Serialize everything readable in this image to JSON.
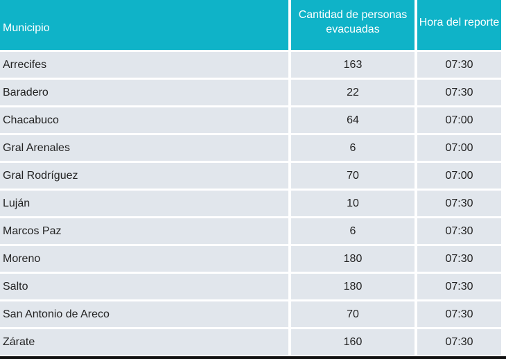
{
  "table": {
    "headers": {
      "municipio": "Municipio",
      "cantidad": "Cantidad de personas evacuadas",
      "hora": "Hora del reporte"
    },
    "rows": [
      {
        "municipio": "Arrecifes",
        "cantidad": "163",
        "hora": "07:30"
      },
      {
        "municipio": "Baradero",
        "cantidad": "22",
        "hora": "07:30"
      },
      {
        "municipio": "Chacabuco",
        "cantidad": "64",
        "hora": "07:00"
      },
      {
        "municipio": "Gral Arenales",
        "cantidad": "6",
        "hora": "07:00"
      },
      {
        "municipio": "Gral Rodríguez",
        "cantidad": "70",
        "hora": "07:00"
      },
      {
        "municipio": "Luján",
        "cantidad": "10",
        "hora": "07:30"
      },
      {
        "municipio": "Marcos Paz",
        "cantidad": "6",
        "hora": "07:30"
      },
      {
        "municipio": "Moreno",
        "cantidad": "180",
        "hora": "07:30"
      },
      {
        "municipio": "Salto",
        "cantidad": "180",
        "hora": "07:30"
      },
      {
        "municipio": "San Antonio de Areco",
        "cantidad": "70",
        "hora": "07:30"
      },
      {
        "municipio": "Zárate",
        "cantidad": "160",
        "hora": "07:30"
      }
    ]
  },
  "colors": {
    "header_bg": "#0fb3c8",
    "row_bg": "#e1e6ec"
  }
}
